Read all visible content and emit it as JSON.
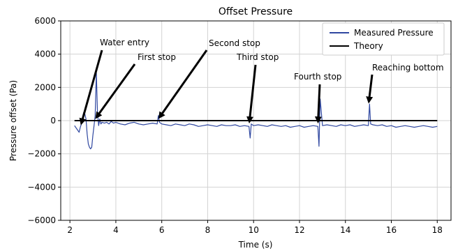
{
  "chart_data": {
    "type": "line",
    "title": "Offset Pressure",
    "xlabel": "Time (s)",
    "ylabel": "Pressure offset (Pa)",
    "xlim": [
      1.6,
      18.6
    ],
    "ylim": [
      -6000,
      6000
    ],
    "xticks": [
      2,
      4,
      6,
      8,
      10,
      12,
      14,
      16,
      18
    ],
    "yticks": [
      -6000,
      -4000,
      -2000,
      0,
      2000,
      4000,
      6000
    ],
    "grid": true,
    "legend_position": "top-right",
    "series": [
      {
        "name": "Measured Pressure",
        "color": "#2f47a0",
        "x": [
          2.2,
          2.3,
          2.4,
          2.45,
          2.5,
          2.55,
          2.6,
          2.65,
          2.7,
          2.75,
          2.8,
          2.85,
          2.9,
          2.95,
          3.0,
          3.05,
          3.1,
          3.15,
          3.2,
          3.25,
          3.3,
          3.35,
          3.4,
          3.5,
          3.6,
          3.7,
          3.8,
          3.9,
          4.0,
          4.2,
          4.4,
          4.6,
          4.8,
          5.0,
          5.2,
          5.4,
          5.6,
          5.8,
          5.85,
          5.9,
          6.0,
          6.2,
          6.4,
          6.6,
          6.8,
          7.0,
          7.2,
          7.4,
          7.6,
          7.8,
          8.0,
          8.2,
          8.4,
          8.6,
          8.8,
          9.0,
          9.2,
          9.4,
          9.6,
          9.8,
          9.85,
          9.9,
          10.0,
          10.2,
          10.4,
          10.6,
          10.8,
          11.0,
          11.2,
          11.4,
          11.6,
          11.8,
          12.0,
          12.2,
          12.4,
          12.6,
          12.8,
          12.85,
          12.9,
          13.0,
          13.2,
          13.4,
          13.6,
          13.8,
          14.0,
          14.2,
          14.4,
          14.6,
          14.8,
          15.0,
          15.05,
          15.1,
          15.2,
          15.4,
          15.6,
          15.8,
          16.0,
          16.2,
          16.4,
          16.6,
          16.8,
          17.0,
          17.2,
          17.4,
          17.6,
          17.8,
          18.0
        ],
        "y": [
          -300,
          -500,
          -700,
          -400,
          -200,
          200,
          500,
          400,
          100,
          -800,
          -1400,
          -1600,
          -1700,
          -1600,
          -900,
          -300,
          300,
          2900,
          500,
          -300,
          100,
          -200,
          -100,
          -150,
          -100,
          -200,
          -50,
          -150,
          -100,
          -200,
          -250,
          -150,
          -100,
          -200,
          -250,
          -200,
          -150,
          -200,
          300,
          -100,
          -200,
          -250,
          -300,
          -200,
          -250,
          -300,
          -200,
          -250,
          -350,
          -300,
          -250,
          -300,
          -350,
          -250,
          -300,
          -300,
          -250,
          -350,
          -300,
          -350,
          -1050,
          -200,
          -300,
          -250,
          -300,
          -350,
          -250,
          -300,
          -350,
          -300,
          -400,
          -350,
          -300,
          -400,
          -350,
          -300,
          -350,
          -1550,
          1300,
          -300,
          -250,
          -300,
          -350,
          -250,
          -300,
          -250,
          -350,
          -300,
          -250,
          -300,
          1000,
          -200,
          -250,
          -300,
          -250,
          -350,
          -300,
          -400,
          -350,
          -300,
          -350,
          -400,
          -350,
          -300,
          -350,
          -400,
          -350
        ],
        "style": "solid"
      },
      {
        "name": "Theory",
        "color": "#000000",
        "x": [
          2.2,
          18.0
        ],
        "y": [
          0,
          0
        ],
        "style": "solid"
      }
    ],
    "annotations": [
      {
        "text": "Water entry",
        "point": [
          2.45,
          -400
        ]
      },
      {
        "text": "First stop",
        "point": [
          3.05,
          0
        ]
      },
      {
        "text": "Second stop",
        "point": [
          5.8,
          0
        ]
      },
      {
        "text": "Third stop",
        "point": [
          9.8,
          -300
        ]
      },
      {
        "text": "Fourth stop",
        "point": [
          12.8,
          -300
        ]
      },
      {
        "text": "Reaching bottom",
        "point": [
          15.0,
          900
        ]
      }
    ]
  }
}
